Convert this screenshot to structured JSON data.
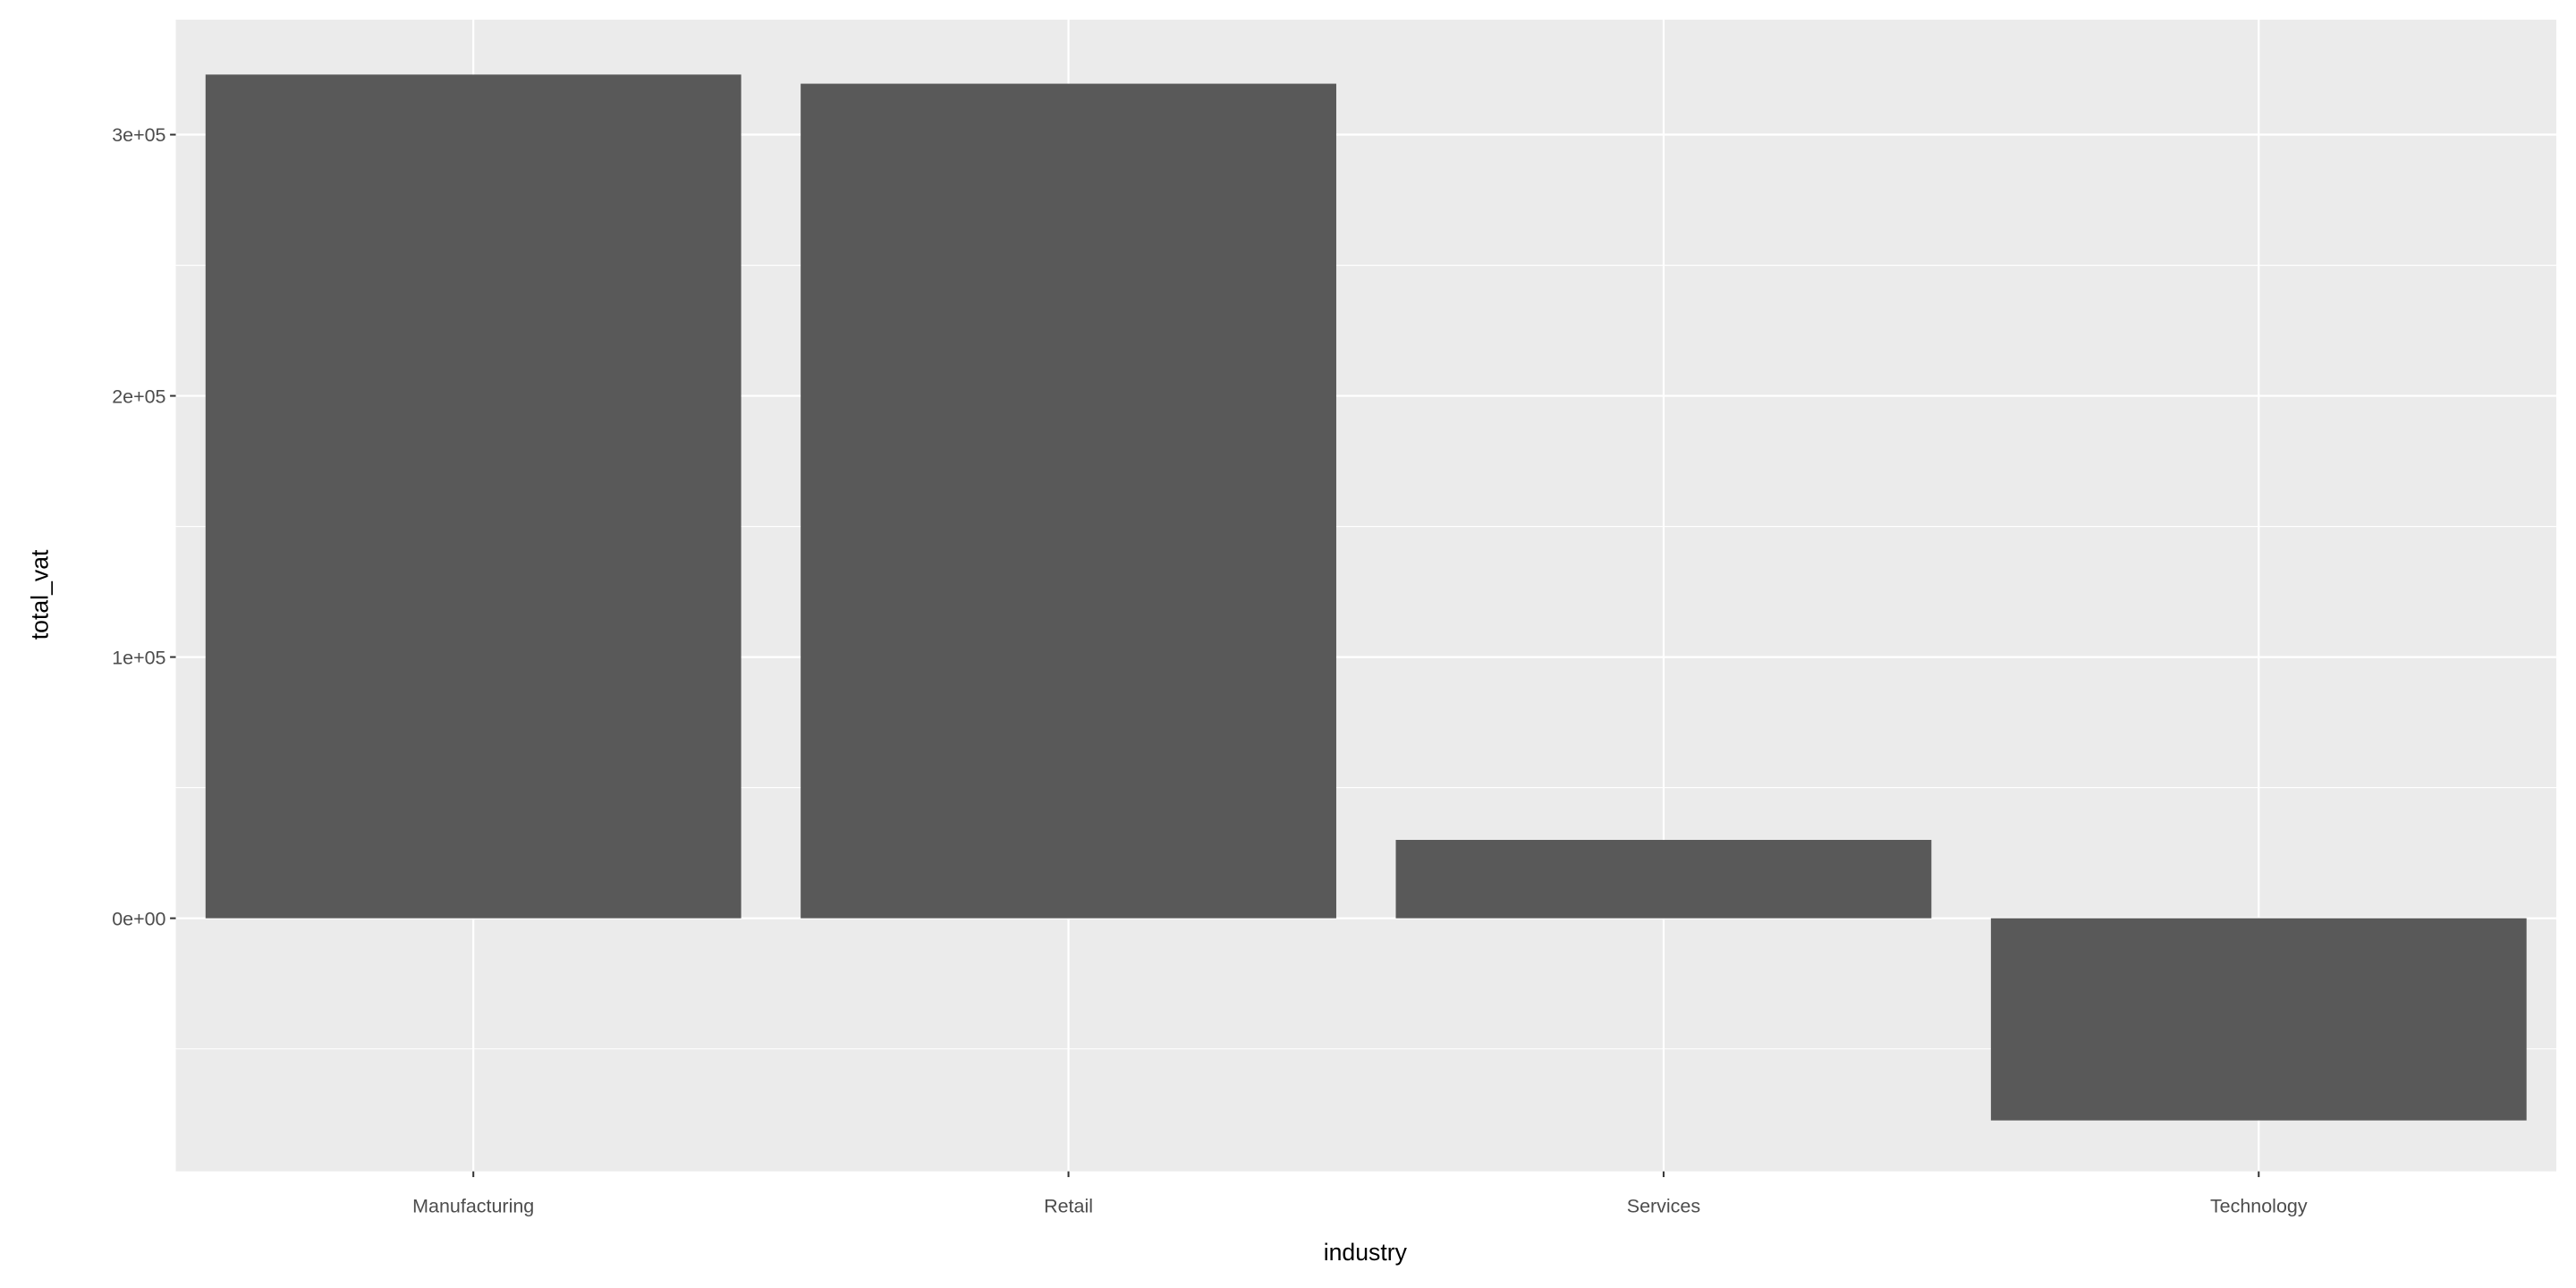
{
  "chart_data": {
    "type": "bar",
    "title": "",
    "xlabel": "industry",
    "ylabel": "total_vat",
    "categories": [
      "Manufacturing",
      "Retail",
      "Services",
      "Technology"
    ],
    "values": [
      323000,
      319500,
      30000,
      -77400
    ],
    "ylim": [
      -96900,
      344000
    ],
    "yticks": [
      0,
      100000,
      200000,
      300000
    ],
    "ytick_labels": [
      "0e+00",
      "1e+05",
      "2e+05",
      "3e+05"
    ],
    "grid": true,
    "colors": {
      "bar": "#595959",
      "panel": "#EBEBEB",
      "grid": "#FFFFFF"
    }
  }
}
